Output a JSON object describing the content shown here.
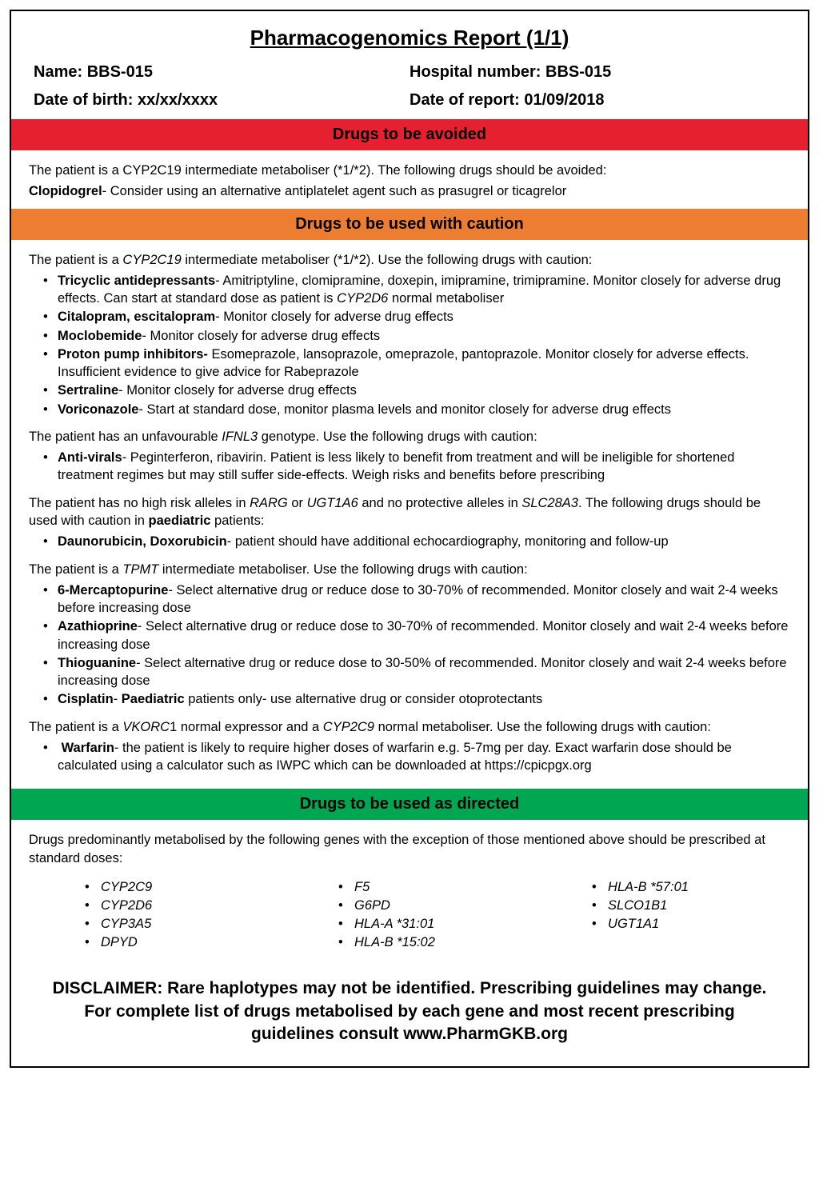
{
  "title": "Pharmacogenomics Report (1/1)",
  "info": {
    "name_label": "Name:",
    "name": "BBS-015",
    "hospital_label": "Hospital number:",
    "hospital": "BBS-015",
    "dob_label": "Date of birth:",
    "dob": "xx/xx/xxxx",
    "report_date_label": "Date of report:",
    "report_date": "01/09/2018"
  },
  "colors": {
    "avoid": "#e6202e",
    "caution": "#ed7d31",
    "directed": "#00a651"
  },
  "avoid": {
    "header": "Drugs to be avoided",
    "intro": "The patient is a CYP2C19 intermediate metaboliser (*1/*2). The following drugs should be avoided:",
    "drug_name": "Clopidogrel",
    "drug_advice": "- Consider using an alternative antiplatelet agent such as prasugrel or ticagrelor"
  },
  "caution": {
    "header": "Drugs to be used with caution",
    "block1_pre": "The patient is a ",
    "block1_gene": "CYP2C19",
    "block1_post": " intermediate metaboliser (*1/*2). Use the following drugs with caution:",
    "b1": [
      {
        "name": "Tricyclic antidepressants",
        "advice_pre": "- Amitriptyline, clomipramine, doxepin, imipramine, trimipramine. Monitor closely for adverse drug effects. Can start at standard dose as patient is ",
        "gene": "CYP2D6",
        "advice_post": " normal metaboliser"
      },
      {
        "name": "Citalopram, escitalopram",
        "advice": "- Monitor closely for adverse drug effects"
      },
      {
        "name": "Moclobemide",
        "advice": "- Monitor closely for adverse drug effects"
      },
      {
        "name": "Proton pump inhibitors-",
        "advice": " Esomeprazole, lansoprazole, omeprazole, pantoprazole. Monitor closely for adverse effects. Insufficient evidence to give advice for Rabeprazole"
      },
      {
        "name": "Sertraline",
        "advice": "- Monitor closely for adverse drug effects"
      },
      {
        "name": "Voriconazole",
        "advice": "- Start at standard dose, monitor plasma levels and monitor closely for adverse drug effects"
      }
    ],
    "block2_pre": "The patient has an unfavourable ",
    "block2_gene": "IFNL3",
    "block2_post": " genotype. Use the following drugs with caution:",
    "b2": [
      {
        "name": "Anti-virals",
        "advice": "- Peginterferon, ribavirin. Patient is less likely to benefit from treatment and will be ineligible for shortened treatment regimes but may still suffer side-effects. Weigh risks and benefits before prescribing"
      }
    ],
    "block3_pre": "The patient has no high risk alleles in ",
    "block3_g1": "RARG",
    "block3_mid1": " or ",
    "block3_g2": "UGT1A6",
    "block3_mid2": " and no protective alleles in ",
    "block3_g3": "SLC28A3",
    "block3_post": ". The following drugs should be used with caution in ",
    "block3_bold": "paediatric",
    "block3_end": " patients:",
    "b3": [
      {
        "name": "Daunorubicin, Doxorubicin",
        "advice": "- patient should have additional echocardiography, monitoring and follow-up"
      }
    ],
    "block4_pre": "The patient is a ",
    "block4_gene": "TPMT",
    "block4_post": " intermediate metaboliser. Use the following drugs with caution:",
    "b4": [
      {
        "name": "6-Mercaptopurine",
        "advice": "- Select alternative drug or reduce dose to 30-70% of recommended. Monitor closely and wait 2-4 weeks before increasing dose"
      },
      {
        "name": "Azathioprine",
        "advice": "- Select alternative drug or reduce dose to 30-70% of recommended. Monitor closely and wait 2-4 weeks before increasing dose"
      },
      {
        "name": "Thioguanine",
        "advice": "- Select alternative drug or reduce dose to 30-50% of recommended. Monitor closely and wait 2-4 weeks before increasing dose"
      },
      {
        "name": "Cisplatin",
        "pre": "- ",
        "bold": "Paediatric",
        "post": " patients only- use alternative drug or consider otoprotectants"
      }
    ],
    "block5_pre": "The patient is a ",
    "block5_g1": "VKORC",
    "block5_num": "1 normal expressor and a ",
    "block5_g2": "CYP2C9",
    "block5_post": " normal metaboliser. Use the following drugs with caution:",
    "b5": [
      {
        "name": "Warfarin",
        "advice": "- the patient is likely to require higher doses of warfarin e.g. 5-7mg per day. Exact warfarin dose should be calculated using a calculator such as IWPC which can be downloaded at https://cpicpgx.org"
      }
    ]
  },
  "directed": {
    "header": "Drugs to be used as directed",
    "intro": "Drugs predominantly metabolised by the following genes with the exception of those mentioned above should be prescribed at standard doses:",
    "col1": [
      "CYP2C9",
      "CYP2D6",
      "CYP3A5",
      "DPYD"
    ],
    "col2": [
      "F5",
      "G6PD",
      "HLA-A *31:01",
      "HLA-B *15:02"
    ],
    "col3": [
      "HLA-B *57:01",
      "SLCO1B1",
      "UGT1A1"
    ]
  },
  "disclaimer": "DISCLAIMER: Rare haplotypes may not be identified. Prescribing guidelines may change. For complete list of  drugs metabolised by each gene and most recent prescribing guidelines consult www.PharmGKB.org"
}
